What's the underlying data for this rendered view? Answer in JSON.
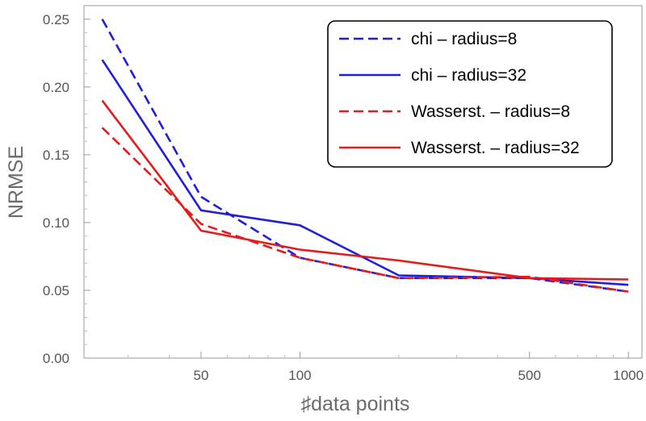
{
  "chart_data": {
    "type": "line",
    "title": "",
    "xlabel": "♯data points",
    "ylabel": "NRMSE",
    "xscale": "log",
    "xlim": [
      22,
      1100
    ],
    "ylim": [
      0,
      0.26
    ],
    "xticks": [
      {
        "value": 50,
        "label": "50"
      },
      {
        "value": 100,
        "label": "100"
      },
      {
        "value": 500,
        "label": "500"
      },
      {
        "value": 1000,
        "label": "1000"
      }
    ],
    "yticks": [
      {
        "value": 0.0,
        "label": "0.00"
      },
      {
        "value": 0.05,
        "label": "0.05"
      },
      {
        "value": 0.1,
        "label": "0.10"
      },
      {
        "value": 0.15,
        "label": "0.15"
      },
      {
        "value": 0.2,
        "label": "0.20"
      },
      {
        "value": 0.25,
        "label": "0.25"
      }
    ],
    "legend_position": "top-right",
    "grid": false,
    "series": [
      {
        "name": "chi – radius=8",
        "color": "#1f1fdb",
        "dash": "dashed",
        "x": [
          25,
          50,
          100,
          200,
          500,
          1000
        ],
        "y": [
          0.25,
          0.119,
          0.074,
          0.059,
          0.059,
          0.049
        ]
      },
      {
        "name": "chi – radius=32",
        "color": "#1f1fdb",
        "dash": "solid",
        "x": [
          25,
          50,
          100,
          200,
          500,
          1000
        ],
        "y": [
          0.22,
          0.109,
          0.098,
          0.061,
          0.059,
          0.054
        ]
      },
      {
        "name": "Wasserst. – radius=8",
        "color": "#e51b1b",
        "dash": "dashed",
        "x": [
          25,
          50,
          100,
          200,
          500,
          1000
        ],
        "y": [
          0.17,
          0.099,
          0.074,
          0.059,
          0.06,
          0.049
        ]
      },
      {
        "name": "Wasserst. – radius=32",
        "color": "#e51b1b",
        "dash": "solid",
        "x": [
          25,
          50,
          100,
          200,
          500,
          1000
        ],
        "y": [
          0.19,
          0.094,
          0.08,
          0.072,
          0.059,
          0.058
        ]
      }
    ]
  }
}
